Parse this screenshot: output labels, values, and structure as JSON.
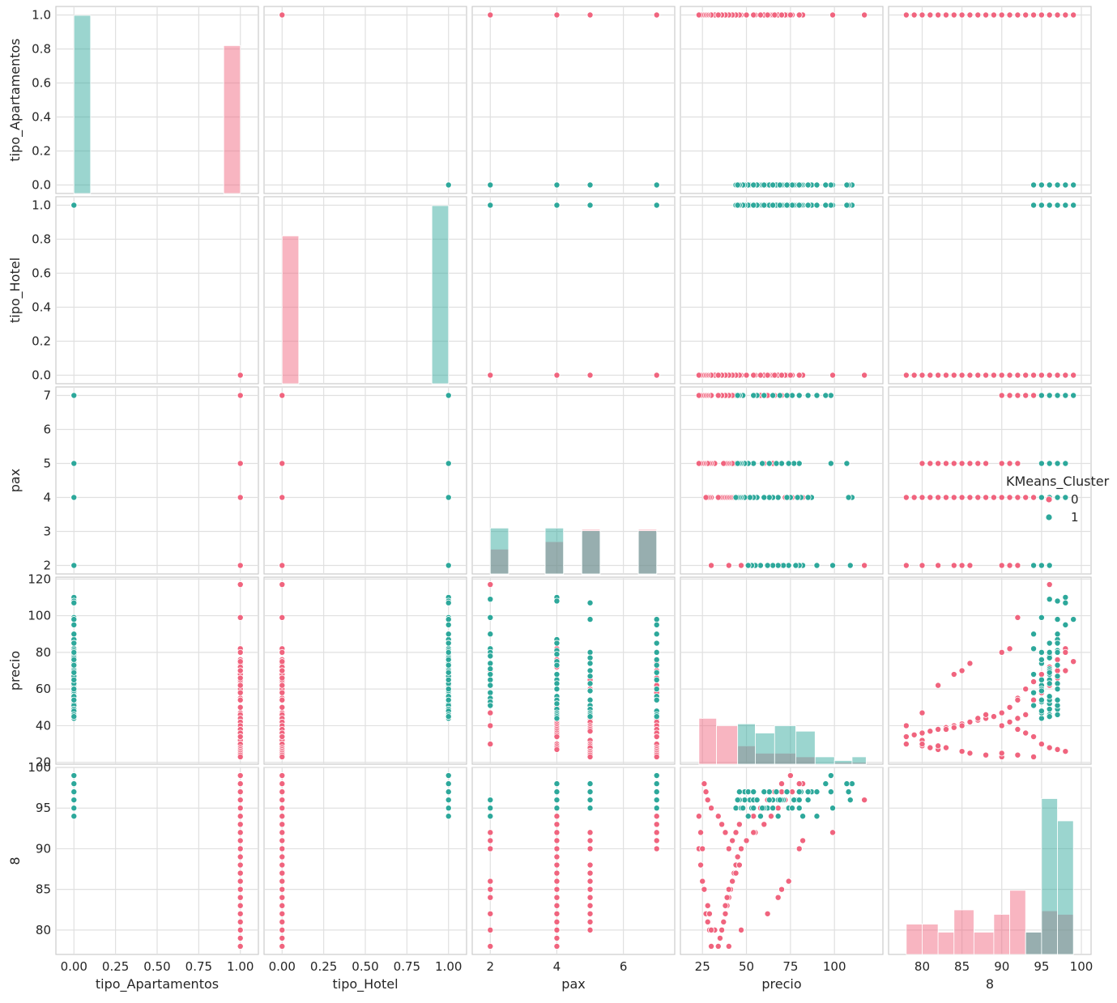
{
  "chart_data": {
    "type": "scatter",
    "variables": [
      "tipo_Apartamentos",
      "tipo_Hotel",
      "pax",
      "precio",
      "8"
    ],
    "diagonal_type": "hist",
    "grid": true,
    "legend": {
      "title": "KMeans_Cluster",
      "placement": "right",
      "entries": [
        "0",
        "1"
      ]
    },
    "hue_colors": {
      "0": "#f0647e",
      "1": "#2da89b"
    },
    "axes": {
      "tipo_Apartamentos": {
        "ticks": [
          0.0,
          0.25,
          0.5,
          0.75,
          1.0
        ],
        "tick_labels": [
          "0.00",
          "0.25",
          "0.50",
          "0.75",
          "1.00"
        ],
        "ylim": [
          -0.05,
          1.05
        ],
        "y_ticks": [
          0.0,
          0.2,
          0.4,
          0.6,
          0.8,
          1.0
        ],
        "y_tick_labels": [
          "0.0",
          "0.2",
          "0.4",
          "0.6",
          "0.8",
          "1.0"
        ]
      },
      "tipo_Hotel": {
        "ticks": [
          0.0,
          0.25,
          0.5,
          0.75,
          1.0
        ],
        "tick_labels": [
          "0.00",
          "0.25",
          "0.50",
          "0.75",
          "1.00"
        ],
        "ylim": [
          -0.05,
          1.05
        ],
        "y_ticks": [
          0.0,
          0.2,
          0.4,
          0.6,
          0.8,
          1.0
        ],
        "y_tick_labels": [
          "0.0",
          "0.2",
          "0.4",
          "0.6",
          "0.8",
          "1.0"
        ]
      },
      "pax": {
        "ticks": [
          2,
          4,
          6
        ],
        "tick_labels": [
          "2",
          "4",
          "6"
        ],
        "xlim": [
          1.75,
          7.25
        ],
        "ylim": [
          1.75,
          7.25
        ],
        "y_ticks": [
          2,
          3,
          4,
          5,
          6,
          7
        ],
        "y_tick_labels": [
          "2",
          "3",
          "4",
          "5",
          "6",
          "7"
        ]
      },
      "precio": {
        "ticks": [
          25,
          50,
          75,
          100
        ],
        "tick_labels": [
          "25",
          "50",
          "75",
          "100"
        ],
        "xlim": [
          18,
          122
        ],
        "ylim": [
          19,
          121
        ],
        "y_ticks": [
          20,
          40,
          60,
          80,
          100,
          120
        ],
        "y_tick_labels": [
          "20",
          "40",
          "60",
          "80",
          "100",
          "120"
        ]
      },
      "8": {
        "ticks": [
          80,
          85,
          90,
          95,
          100
        ],
        "tick_labels": [
          "80",
          "85",
          "90",
          "95",
          "100"
        ],
        "xlim": [
          77,
          100
        ],
        "ylim": [
          77,
          100
        ],
        "y_ticks": [
          80,
          85,
          90,
          95,
          100
        ],
        "y_tick_labels": [
          "80",
          "85",
          "90",
          "95",
          "100"
        ]
      }
    },
    "points": {
      "cluster_0": {
        "pax": [
          2,
          2,
          2,
          2,
          2,
          2,
          2,
          2,
          2,
          2,
          2,
          4,
          4,
          4,
          4,
          4,
          4,
          4,
          4,
          4,
          4,
          4,
          4,
          4,
          4,
          4,
          4,
          4,
          4,
          4,
          4,
          4,
          4,
          4,
          4,
          4,
          5,
          5,
          5,
          5,
          5,
          5,
          5,
          5,
          5,
          5,
          5,
          5,
          5,
          5,
          5,
          5,
          5,
          5,
          5,
          5,
          5,
          7,
          7,
          7,
          7,
          7,
          7,
          7,
          7,
          7,
          7,
          7,
          7,
          7,
          7,
          7,
          7,
          7,
          7,
          7,
          7
        ],
        "precio": [
          117,
          99,
          82,
          80,
          74,
          70,
          68,
          62,
          47,
          40,
          30,
          82,
          76,
          72,
          68,
          64,
          60,
          55,
          50,
          47,
          45,
          44,
          43,
          42,
          41,
          40,
          39,
          38,
          37,
          36,
          35,
          34,
          30,
          29,
          28,
          27,
          80,
          70,
          65,
          60,
          54,
          50,
          46,
          44,
          42,
          40,
          39,
          38,
          37,
          32,
          30,
          29,
          28,
          26,
          25,
          24,
          23,
          75,
          70,
          66,
          62,
          58,
          54,
          46,
          44,
          42,
          40,
          38,
          36,
          34,
          30,
          28,
          27,
          26,
          25,
          24,
          23
        ],
        "score": [
          96,
          92,
          91,
          90,
          86,
          85,
          84,
          82,
          80,
          78,
          78,
          98,
          97,
          96,
          95,
          94,
          93,
          92,
          91,
          90,
          89,
          88,
          87,
          86,
          85,
          84,
          83,
          82,
          81,
          80,
          79,
          78,
          78,
          80,
          81,
          82,
          98,
          97,
          96,
          95,
          92,
          91,
          88,
          87,
          86,
          85,
          84,
          83,
          81,
          80,
          80,
          82,
          83,
          85,
          86,
          88,
          90,
          99,
          98,
          97,
          96,
          95,
          94,
          93,
          92,
          91,
          90,
          92,
          93,
          94,
          95,
          96,
          97,
          98,
          90,
          92,
          94
        ]
      },
      "cluster_1": {
        "pax": [
          2,
          2,
          2,
          2,
          2,
          2,
          2,
          2,
          2,
          2,
          2,
          2,
          2,
          2,
          2,
          4,
          4,
          4,
          4,
          4,
          4,
          4,
          4,
          4,
          4,
          4,
          4,
          4,
          4,
          4,
          4,
          4,
          4,
          4,
          4,
          5,
          5,
          5,
          5,
          5,
          5,
          5,
          5,
          5,
          5,
          5,
          5,
          5,
          5,
          5,
          7,
          7,
          7,
          7,
          7,
          7,
          7,
          7,
          7,
          7,
          7,
          7,
          7,
          7,
          7
        ],
        "precio": [
          109,
          99,
          90,
          82,
          80,
          78,
          74,
          71,
          68,
          65,
          62,
          58,
          55,
          53,
          51,
          110,
          108,
          87,
          85,
          81,
          79,
          75,
          73,
          68,
          65,
          63,
          60,
          56,
          54,
          52,
          49,
          47,
          46,
          45,
          44,
          107,
          98,
          80,
          77,
          74,
          70,
          67,
          63,
          59,
          54,
          51,
          49,
          47,
          46,
          45,
          98,
          95,
          90,
          85,
          80,
          76,
          73,
          69,
          65,
          60,
          56,
          54,
          48,
          46,
          45
        ],
        "score": [
          96,
          95,
          94,
          94,
          95,
          96,
          95,
          96,
          94,
          95,
          95,
          94,
          96,
          95,
          94,
          98,
          97,
          97,
          96,
          97,
          96,
          95,
          97,
          96,
          96,
          97,
          95,
          96,
          95,
          96,
          97,
          95,
          96,
          96,
          95,
          98,
          97,
          97,
          96,
          95,
          96,
          97,
          96,
          95,
          96,
          97,
          96,
          95,
          97,
          96,
          99,
          98,
          97,
          97,
          96,
          95,
          97,
          96,
          95,
          97,
          96,
          97,
          95,
          96,
          96
        ]
      }
    },
    "diagonal_hist": {
      "tipo_Apartamentos": {
        "cluster_0": [
          {
            "x": [
              0.9,
              1.0
            ],
            "count": 0.83
          }
        ],
        "cluster_1": [
          {
            "x": [
              0.0,
              0.1
            ],
            "count": 1.0
          }
        ]
      },
      "tipo_Hotel": {
        "cluster_0": [
          {
            "x": [
              0.0,
              0.1
            ],
            "count": 0.83
          }
        ],
        "cluster_1": [
          {
            "x": [
              0.9,
              1.0
            ],
            "count": 1.0
          }
        ]
      },
      "pax": {
        "cluster_0": [
          {
            "x": [
              2.0,
              2.55
            ],
            "count": 2.48
          },
          {
            "x": [
              3.65,
              4.2
            ],
            "count": 2.7
          },
          {
            "x": [
              4.75,
              5.3
            ],
            "count": 3.06
          },
          {
            "x": [
              6.45,
              7.0
            ],
            "count": 3.06
          }
        ],
        "cluster_1": [
          {
            "x": [
              2.0,
              2.55
            ],
            "count": 3.1
          },
          {
            "x": [
              3.65,
              4.2
            ],
            "count": 3.1
          },
          {
            "x": [
              4.75,
              5.3
            ],
            "count": 3.02
          },
          {
            "x": [
              6.45,
              7.0
            ],
            "count": 3.02
          }
        ]
      },
      "precio": {
        "cluster_0": [
          {
            "x": [
              23,
              33
            ],
            "count": 44
          },
          {
            "x": [
              33,
              45
            ],
            "count": 40
          },
          {
            "x": [
              45,
              55
            ],
            "count": 29
          },
          {
            "x": [
              55,
              66
            ],
            "count": 25
          },
          {
            "x": [
              66,
              78
            ],
            "count": 25
          },
          {
            "x": [
              78,
              89
            ],
            "count": 23
          },
          {
            "x": [
              89,
              100
            ],
            "count": 19
          },
          {
            "x": [
              100,
              110
            ],
            "count": 20
          },
          {
            "x": [
              110,
              118
            ],
            "count": 20
          }
        ],
        "cluster_1": [
          {
            "x": [
              45,
              55
            ],
            "count": 41
          },
          {
            "x": [
              55,
              66
            ],
            "count": 36
          },
          {
            "x": [
              66,
              78
            ],
            "count": 40
          },
          {
            "x": [
              78,
              89
            ],
            "count": 37
          },
          {
            "x": [
              89,
              100
            ],
            "count": 23
          },
          {
            "x": [
              100,
              110
            ],
            "count": 21
          },
          {
            "x": [
              110,
              118
            ],
            "count": 23
          }
        ]
      },
      "8": {
        "cluster_0": [
          {
            "x": [
              78,
              80
            ],
            "count": 0.34
          },
          {
            "x": [
              80,
              82
            ],
            "count": 0.34
          },
          {
            "x": [
              82,
              84
            ],
            "count": 0.25
          },
          {
            "x": [
              84,
              86.5
            ],
            "count": 0.5
          },
          {
            "x": [
              86.5,
              89
            ],
            "count": 0.25
          },
          {
            "x": [
              89,
              91
            ],
            "count": 0.45
          },
          {
            "x": [
              91,
              93
            ],
            "count": 0.72
          },
          {
            "x": [
              93,
              95
            ],
            "count": 0.25
          },
          {
            "x": [
              95,
              97
            ],
            "count": 0.49
          },
          {
            "x": [
              97,
              99
            ],
            "count": 0.45
          }
        ],
        "cluster_1": [
          {
            "x": [
              93,
              95
            ],
            "count": 0.25
          },
          {
            "x": [
              95,
              97
            ],
            "count": 1.75
          },
          {
            "x": [
              97,
              99
            ],
            "count": 1.5
          }
        ]
      }
    }
  }
}
